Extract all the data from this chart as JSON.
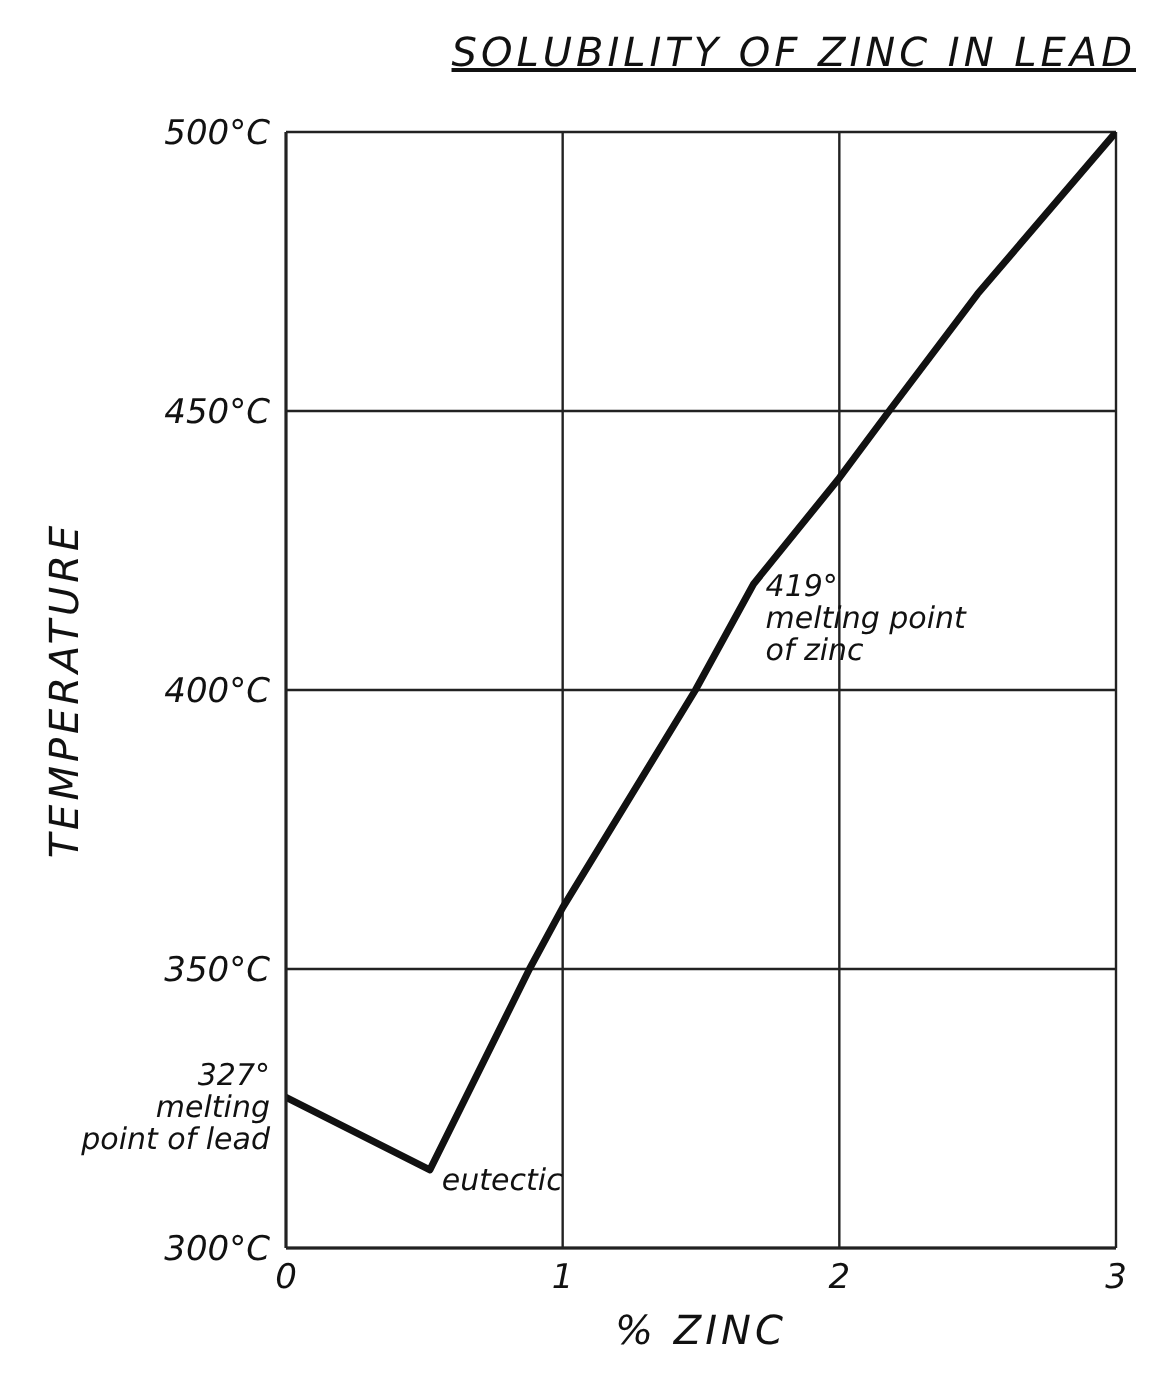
{
  "chart_data": {
    "type": "line",
    "title": "SOLUBILITY OF ZINC IN LEAD",
    "xlabel": "% ZINC",
    "ylabel": "TEMPERATURE",
    "x": [
      0,
      0.52,
      0.88,
      1,
      1.48,
      1.69,
      2,
      2.18,
      2.5,
      3
    ],
    "series": [
      {
        "color": "#111111",
        "values": [
          327,
          314,
          350,
          361,
          400,
          419,
          438,
          450,
          471,
          500
        ]
      }
    ],
    "xlim": [
      0,
      3
    ],
    "xticks": [
      0,
      1,
      2,
      3
    ],
    "ylim": [
      300,
      500
    ],
    "yticks": [
      {
        "value": 300,
        "label": "300°C"
      },
      {
        "value": 350,
        "label": "350°C"
      },
      {
        "value": 400,
        "label": "400°C"
      },
      {
        "value": 450,
        "label": "450°C"
      },
      {
        "value": 500,
        "label": "500°C"
      }
    ],
    "annotations": [
      {
        "text": "327°\nmelting\npoint of lead",
        "x": 0,
        "y": 327
      },
      {
        "text": "eutectic",
        "x": 0.52,
        "y": 314
      },
      {
        "text": "419°\nmelting point\nof zinc",
        "x": 1.69,
        "y": 419
      }
    ],
    "grid": true,
    "marker": "none",
    "line_style": "solid",
    "legend": false
  }
}
